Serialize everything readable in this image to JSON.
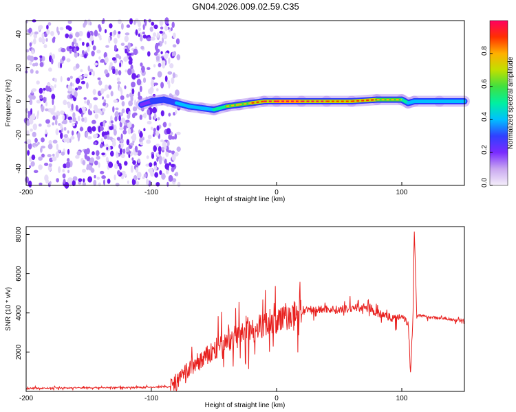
{
  "title": "GN04.2026.009.02.59.C35",
  "chart_data": [
    {
      "type": "heatmap",
      "xlabel": "Height of straight line (km)",
      "ylabel": "Frequency (Hz)",
      "xlim": [
        -200,
        150
      ],
      "ylim": [
        -50,
        48
      ],
      "xticks": [
        -200,
        -100,
        0,
        100
      ],
      "yticks": [
        -40,
        -20,
        0,
        20,
        40
      ],
      "colorbar": {
        "label": "Normalized spectral amplitude",
        "range": [
          0,
          1
        ],
        "ticks": [
          "0.0",
          "0.2",
          "0.4",
          "0.6",
          "0.8"
        ],
        "colors": [
          "#f4eefa",
          "#c9a8f0",
          "#7a2bff",
          "#3040ff",
          "#00c0ff",
          "#00f0a0",
          "#40e040",
          "#c0e000",
          "#ffb000",
          "#ff3000",
          "#ff0060"
        ]
      },
      "noise_region_x": [
        -200,
        -78
      ],
      "ridge": {
        "x": [
          -108,
          -100,
          -90,
          -80,
          -70,
          -60,
          -50,
          -40,
          -30,
          -20,
          -10,
          0,
          20,
          40,
          60,
          80,
          100,
          105,
          110,
          130,
          150
        ],
        "y": [
          -2,
          0,
          1,
          -1,
          -3,
          -4,
          -5,
          -3,
          -2,
          -1,
          0,
          0,
          0,
          0,
          0,
          1,
          1,
          -1,
          0,
          0,
          0
        ],
        "amplitude": [
          0.3,
          0.35,
          0.4,
          0.45,
          0.5,
          0.55,
          0.55,
          0.7,
          0.8,
          0.85,
          0.9,
          1.0,
          1.0,
          0.95,
          0.9,
          0.85,
          0.75,
          0.6,
          0.55,
          0.55,
          0.55
        ]
      }
    },
    {
      "type": "line",
      "xlabel": "Height of straight line (km)",
      "ylabel": "SNR (10 * v/v)",
      "xlim": [
        -200,
        150
      ],
      "ylim": [
        0,
        8400
      ],
      "xticks": [
        -200,
        -100,
        0,
        100
      ],
      "yticks": [
        2000,
        4000,
        6000,
        8000
      ],
      "series": [
        {
          "color": "#e8201e",
          "x": [
            -200,
            -180,
            -160,
            -140,
            -120,
            -100,
            -85,
            -80,
            -75,
            -70,
            -65,
            -60,
            -55,
            -50,
            -45,
            -40,
            -35,
            -30,
            -25,
            -20,
            -15,
            -10,
            -5,
            0,
            5,
            10,
            15,
            20,
            25,
            30,
            40,
            50,
            60,
            70,
            80,
            90,
            95,
            100,
            105,
            107,
            109,
            110,
            112,
            115,
            120,
            130,
            140,
            150
          ],
          "y": [
            150,
            170,
            180,
            190,
            200,
            210,
            250,
            400,
            800,
            1100,
            1400,
            1600,
            1800,
            2100,
            2300,
            2500,
            2700,
            2900,
            3000,
            3100,
            3300,
            3400,
            3500,
            3600,
            3700,
            3800,
            3950,
            4050,
            4100,
            4150,
            4200,
            4150,
            4250,
            4300,
            4000,
            3800,
            3700,
            3900,
            3500,
            1000,
            4000,
            8200,
            3900,
            3850,
            3800,
            3750,
            3650,
            3600
          ]
        }
      ]
    }
  ]
}
